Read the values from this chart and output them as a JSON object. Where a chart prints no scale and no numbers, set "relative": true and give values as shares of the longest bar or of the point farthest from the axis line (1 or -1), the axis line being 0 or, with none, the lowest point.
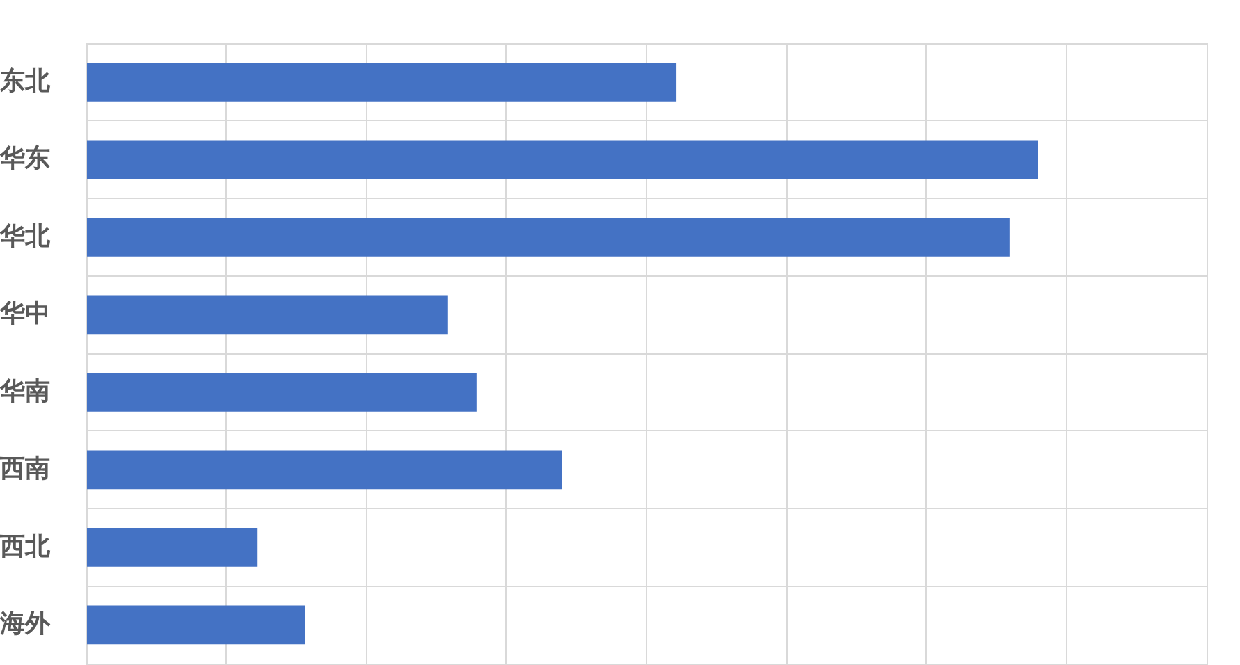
{
  "chart_data": {
    "type": "bar",
    "orientation": "horizontal",
    "relative": true,
    "categories": [
      "东北",
      "华东",
      "华北",
      "华中",
      "华南",
      "西南",
      "西北",
      "海外"
    ],
    "values": [
      0.62,
      1,
      0.97,
      0.38,
      0.41,
      0.5,
      0.18,
      0.23
    ],
    "color": "#4472c4",
    "grid": true
  }
}
